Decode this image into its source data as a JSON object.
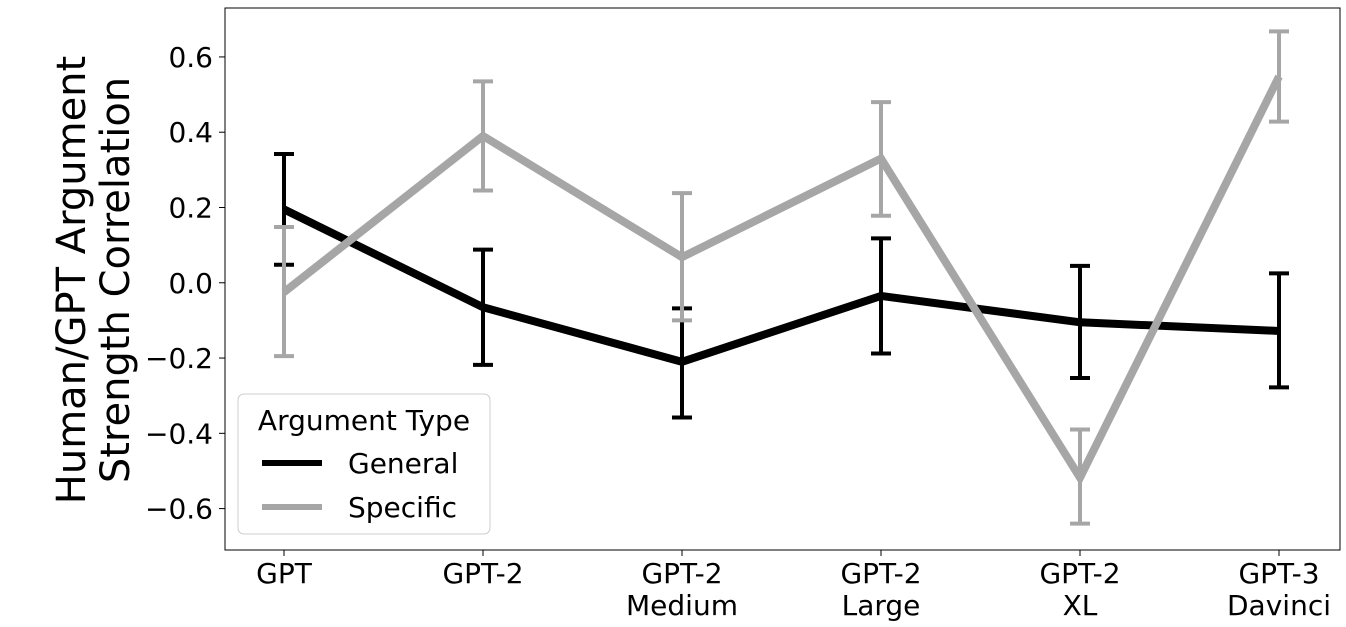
{
  "chart_data": {
    "type": "line",
    "title": "",
    "ylabel_lines": [
      "Human/GPT Argument",
      "Strength Correlation"
    ],
    "xlabel": "",
    "categories": [
      [
        "GPT"
      ],
      [
        "GPT-2"
      ],
      [
        "GPT-2",
        "Medium"
      ],
      [
        "GPT-2",
        "Large"
      ],
      [
        "GPT-2",
        "XL"
      ],
      [
        "GPT-3",
        "Davinci"
      ]
    ],
    "yticks": [
      -0.6,
      -0.4,
      -0.2,
      0.0,
      0.2,
      0.4,
      0.6
    ],
    "ytick_labels": [
      "−0.6",
      "−0.4",
      "−0.2",
      "0.0",
      "0.2",
      "0.4",
      "0.6"
    ],
    "ylim": [
      -0.71,
      0.73
    ],
    "grid": false,
    "legend": {
      "title": "Argument Type",
      "position": "bottom-left"
    },
    "series": [
      {
        "name": "General",
        "color": "#000000",
        "values": [
          0.195,
          -0.065,
          -0.21,
          -0.035,
          -0.105,
          -0.128
        ],
        "err_low": [
          0.048,
          -0.218,
          -0.358,
          -0.188,
          -0.253,
          -0.278
        ],
        "err_high": [
          0.342,
          0.088,
          -0.068,
          0.118,
          0.045,
          0.025
        ]
      },
      {
        "name": "Specific",
        "color": "#a6a6a6",
        "values": [
          -0.025,
          0.39,
          0.068,
          0.33,
          -0.518,
          0.548
        ],
        "err_low": [
          -0.195,
          0.245,
          -0.1,
          0.178,
          -0.64,
          0.428
        ],
        "err_high": [
          0.148,
          0.535,
          0.238,
          0.48,
          -0.39,
          0.668
        ]
      }
    ]
  }
}
